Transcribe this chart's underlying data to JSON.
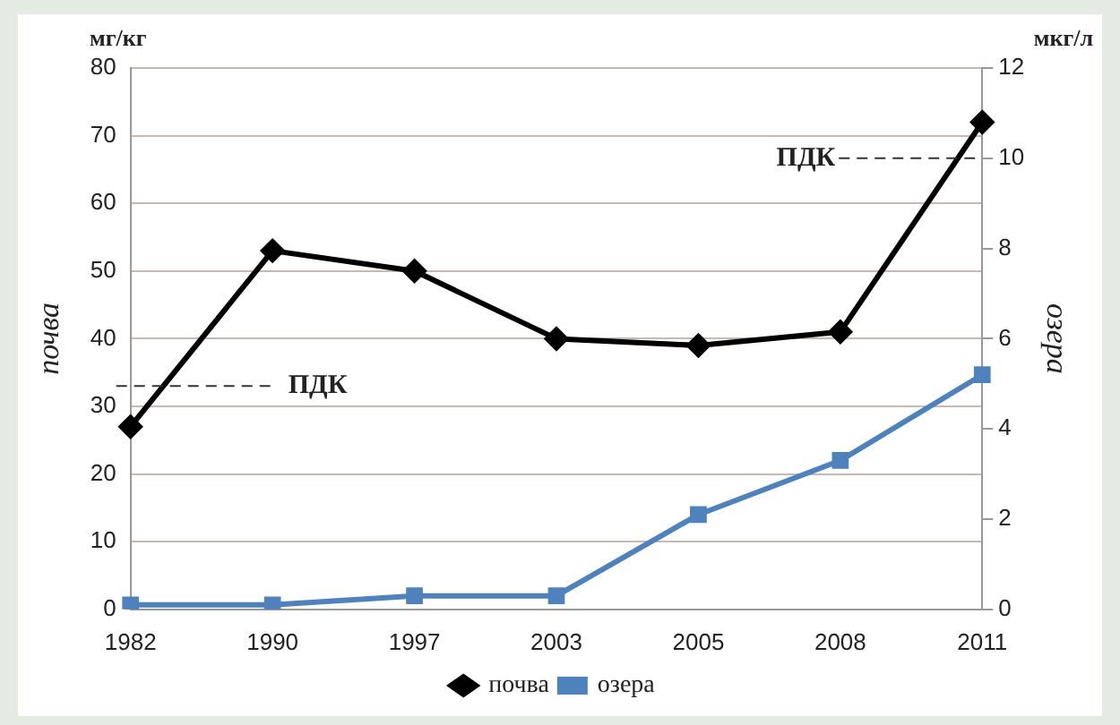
{
  "chart_data": {
    "type": "line",
    "xlabel": null,
    "ylabel": "почва",
    "y2label": "озера",
    "annotations": [
      "мг/кг",
      "мкг/л"
    ],
    "categories": [
      "1982",
      "1990",
      "1997",
      "2003",
      "2005",
      "2008",
      "2011"
    ],
    "series": [
      {
        "name": "почва",
        "color": "#000000",
        "marker": "diamond",
        "values": [
          27,
          53,
          50,
          40,
          39,
          41,
          72
        ]
      },
      {
        "name": "озера",
        "color": "#4f81bd",
        "marker": "square",
        "axis": "y2",
        "values": [
          0.1,
          0.1,
          0.3,
          0.3,
          2.1,
          3.3,
          5.2
        ]
      }
    ],
    "ylim": [
      0,
      80
    ],
    "yticks": [
      0,
      10,
      20,
      30,
      40,
      50,
      60,
      70,
      80
    ],
    "y2lim": [
      0,
      12
    ],
    "y2ticks": [
      0,
      2,
      4,
      6,
      8,
      10,
      12
    ],
    "ref_lines": [
      {
        "axis": "y",
        "value": 33,
        "label": "ПДК",
        "line_style": "dashed"
      },
      {
        "axis": "y2",
        "value": 10,
        "label": "ПДК",
        "line_style": "dashed"
      }
    ],
    "grid": "y",
    "legend": "bottom",
    "line_style": "solid"
  }
}
